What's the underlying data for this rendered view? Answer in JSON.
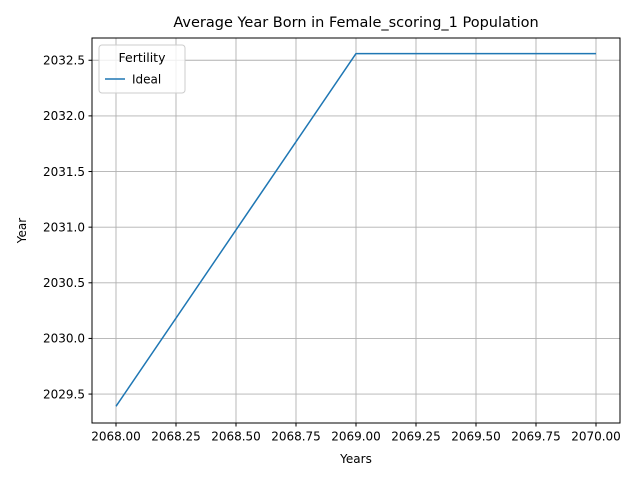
{
  "chart_data": {
    "type": "line",
    "title": "Average Year Born in Female_scoring_1 Population",
    "xlabel": "Years",
    "ylabel": "Year",
    "xlim": [
      2067.9,
      2070.1
    ],
    "ylim": [
      2029.24,
      2032.7
    ],
    "xticks": [
      2068.0,
      2068.25,
      2068.5,
      2068.75,
      2069.0,
      2069.25,
      2069.5,
      2069.75,
      2070.0
    ],
    "xtick_labels": [
      "2068.00",
      "2068.25",
      "2068.50",
      "2068.75",
      "2069.00",
      "2069.25",
      "2069.50",
      "2069.75",
      "2070.00"
    ],
    "yticks": [
      2029.5,
      2030.0,
      2030.5,
      2031.0,
      2031.5,
      2032.0,
      2032.5
    ],
    "ytick_labels": [
      "2029.5",
      "2030.0",
      "2030.5",
      "2031.0",
      "2031.5",
      "2032.0",
      "2032.5"
    ],
    "grid": true,
    "legend": {
      "title": "Fertility",
      "placement": "upper-left"
    },
    "series": [
      {
        "name": "Ideal",
        "color": "#1f77b4",
        "x": [
          2068,
          2069,
          2070
        ],
        "y": [
          2029.39,
          2032.56,
          2032.56
        ]
      }
    ]
  }
}
